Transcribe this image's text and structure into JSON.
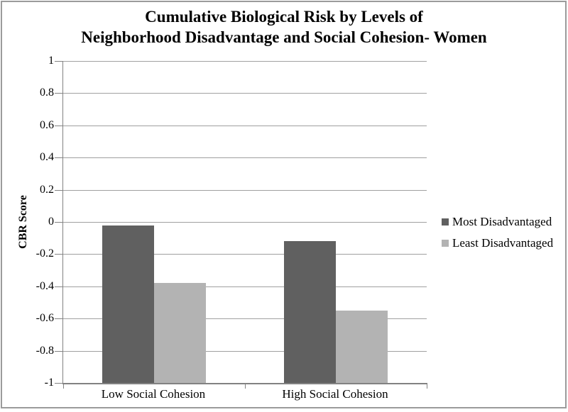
{
  "chart": {
    "title_line1": "Cumulative Biological Risk by Levels of",
    "title_line2": "Neighborhood Disadvantage and Social Cohesion- Women"
  },
  "chart_data": {
    "type": "bar",
    "title": "Cumulative Biological Risk by Levels of Neighborhood Disadvantage and Social Cohesion- Women",
    "ylabel": "CBR Score",
    "xlabel": "",
    "ylim": [
      -1,
      1
    ],
    "ytick_step": 0.2,
    "ytick_labels": [
      "1",
      "0.8",
      "0.6",
      "0.4",
      "0.2",
      "0",
      "-0.2",
      "-0.4",
      "-0.6",
      "-0.8",
      "-1"
    ],
    "categories": [
      "Low Social Cohesion",
      "High Social Cohesion"
    ],
    "series": [
      {
        "name": "Most Disadvantaged",
        "color": "#606060",
        "values": [
          -0.02,
          -0.12
        ]
      },
      {
        "name": "Least Disadvantaged",
        "color": "#b3b3b3",
        "values": [
          -0.38,
          -0.55
        ]
      }
    ],
    "grid": true,
    "legend_position": "right",
    "bar_baseline": -1
  }
}
